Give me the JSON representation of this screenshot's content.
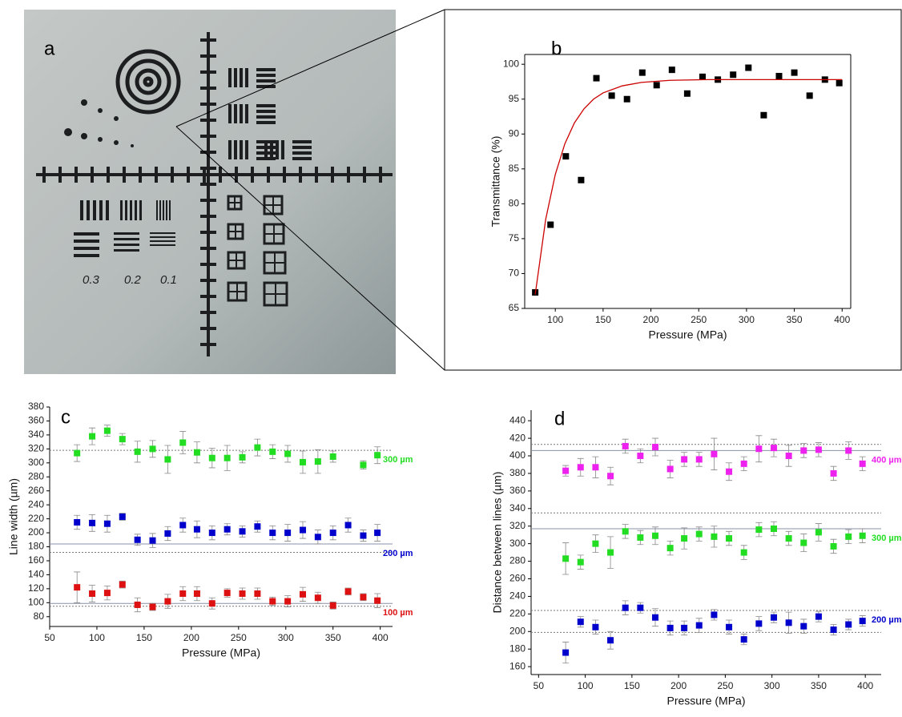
{
  "photo": {
    "label": "a",
    "scale_labels": [
      "0.3",
      "0.2",
      "0.1"
    ]
  },
  "chart_data": [
    {
      "type": "scatter",
      "panel_label": "b",
      "x_label": "Pressure (MPa)",
      "y_label": "Transmittance (%)",
      "x": [
        79,
        95,
        111,
        127,
        143,
        159,
        175,
        191,
        206,
        222,
        238,
        254,
        270,
        286,
        302,
        318,
        334,
        350,
        366,
        382,
        397
      ],
      "xlim": [
        68,
        409
      ],
      "xticks": [
        100,
        150,
        200,
        250,
        300,
        350,
        400
      ],
      "ylim": [
        65,
        101.4
      ],
      "yticks": [
        65,
        70,
        75,
        80,
        85,
        90,
        95,
        100
      ],
      "frame": true,
      "series": [
        {
          "color": "#000000",
          "values": [
            67.3,
            77,
            86.8,
            83.4,
            98,
            95.5,
            95,
            98.8,
            97,
            99.2,
            95.8,
            98.2,
            97.8,
            98.5,
            99.5,
            92.7,
            98.3,
            98.8,
            95.5,
            97.8,
            97.3
          ]
        },
        {
          "color": "#cc0000",
          "mode": "line",
          "x": [
            79,
            90,
            100,
            110,
            120,
            130,
            140,
            150,
            170,
            190,
            220,
            260,
            300,
            350,
            400
          ],
          "values": [
            67,
            77.8,
            84.2,
            88.6,
            91.6,
            93.6,
            95,
            95.9,
            96.9,
            97.4,
            97.7,
            97.8,
            97.8,
            97.8,
            97.8
          ]
        }
      ]
    },
    {
      "type": "scatter",
      "panel_label": "c",
      "x_label": "Pressure (MPa)",
      "y_label": "Line width (µm)",
      "x": [
        79,
        95,
        111,
        127,
        143,
        159,
        175,
        191,
        206,
        222,
        238,
        254,
        270,
        286,
        302,
        318,
        334,
        350,
        366,
        382,
        397
      ],
      "xlim": [
        50,
        413
      ],
      "xticks": [
        50,
        100,
        150,
        200,
        250,
        300,
        350,
        400
      ],
      "ylim": [
        66,
        380
      ],
      "yticks": [
        80,
        100,
        120,
        140,
        160,
        180,
        200,
        220,
        240,
        260,
        280,
        300,
        320,
        340,
        360,
        380
      ],
      "series": [
        {
          "name": "300 µm",
          "color": "#22dd22",
          "values": [
            314,
            338,
            346,
            334,
            316,
            320,
            305,
            329,
            315,
            307,
            307,
            308,
            322,
            316,
            313,
            301,
            302,
            309,
            null,
            297,
            311
          ],
          "errors": [
            12,
            12,
            8,
            8,
            15,
            12,
            20,
            16,
            15,
            14,
            18,
            8,
            12,
            10,
            12,
            16,
            17,
            8,
            null,
            6,
            12
          ],
          "ref_lines": [
            {
              "value": 318,
              "style": "dotted"
            }
          ]
        },
        {
          "name": "200 µm",
          "color": "#0000cc",
          "values": [
            215,
            214,
            213,
            223,
            190,
            189,
            199,
            211,
            205,
            200,
            205,
            202,
            209,
            200,
            200,
            204,
            194,
            200,
            211,
            196,
            200
          ],
          "errors": [
            10,
            12,
            12,
            5,
            8,
            10,
            10,
            10,
            12,
            10,
            8,
            8,
            8,
            10,
            12,
            12,
            10,
            10,
            10,
            8,
            12
          ],
          "ref_lines": [
            {
              "value": 184,
              "style": "solid"
            },
            {
              "value": 172,
              "style": "dotted"
            }
          ]
        },
        {
          "name": "100 µm",
          "color": "#dd1111",
          "values": [
            122,
            113,
            114,
            126,
            97,
            94,
            102,
            113,
            113,
            99,
            114,
            113,
            113,
            102,
            102,
            112,
            107,
            96,
            116,
            108,
            103
          ],
          "errors": [
            22,
            12,
            10,
            5,
            10,
            5,
            10,
            10,
            10,
            8,
            6,
            8,
            8,
            6,
            8,
            10,
            8,
            5,
            5,
            5,
            10
          ],
          "ref_lines": [
            {
              "value": 99,
              "style": "solid"
            },
            {
              "value": 95,
              "style": "dotted"
            }
          ]
        }
      ]
    },
    {
      "type": "scatter",
      "panel_label": "d",
      "x_label": "Pressure (MPa)",
      "y_label": "Distance between lines (µm)",
      "x": [
        79,
        95,
        111,
        127,
        143,
        159,
        175,
        191,
        206,
        222,
        238,
        254,
        270,
        286,
        302,
        318,
        334,
        350,
        366,
        382,
        397
      ],
      "xlim": [
        42,
        417
      ],
      "xticks": [
        50,
        100,
        150,
        200,
        250,
        300,
        350,
        400
      ],
      "ylim": [
        151,
        452
      ],
      "yticks": [
        160,
        180,
        200,
        220,
        240,
        260,
        280,
        300,
        320,
        340,
        360,
        380,
        400,
        420,
        440
      ],
      "series": [
        {
          "name": "400 µm",
          "color": "#ee22ee",
          "values": [
            383,
            387,
            387,
            377,
            411,
            400,
            410,
            385,
            396,
            396,
            402,
            382,
            391,
            408,
            409,
            400,
            406,
            407,
            380,
            406,
            391
          ],
          "errors": [
            6,
            10,
            12,
            10,
            8,
            8,
            10,
            10,
            8,
            8,
            18,
            10,
            8,
            15,
            10,
            12,
            8,
            8,
            8,
            10,
            8
          ],
          "ref_lines": [
            {
              "value": 406,
              "style": "solid"
            },
            {
              "value": 413,
              "style": "dotted"
            }
          ]
        },
        {
          "name": "300 µm",
          "color": "#22dd22",
          "values": [
            283,
            279,
            300,
            290,
            314,
            307,
            309,
            295,
            306,
            311,
            308,
            306,
            290,
            316,
            317,
            306,
            301,
            313,
            297,
            308,
            309
          ],
          "errors": [
            18,
            8,
            10,
            18,
            8,
            8,
            10,
            8,
            12,
            8,
            12,
            8,
            8,
            8,
            8,
            8,
            10,
            10,
            8,
            8,
            8
          ],
          "ref_lines": [
            {
              "value": 317,
              "style": "solid"
            },
            {
              "value": 335,
              "style": "dotted"
            }
          ]
        },
        {
          "name": "200 µm",
          "color": "#0000cc",
          "values": [
            176,
            211,
            205,
            190,
            227,
            227,
            216,
            204,
            204,
            207,
            219,
            205,
            191,
            209,
            216,
            210,
            206,
            217,
            202,
            208,
            212
          ],
          "errors": [
            12,
            6,
            8,
            10,
            8,
            6,
            10,
            8,
            8,
            8,
            6,
            8,
            6,
            8,
            6,
            12,
            8,
            6,
            6,
            6,
            6
          ],
          "ref_lines": [
            {
              "value": 224,
              "style": "dotted"
            },
            {
              "value": 199,
              "style": "dotted"
            }
          ]
        }
      ]
    }
  ]
}
